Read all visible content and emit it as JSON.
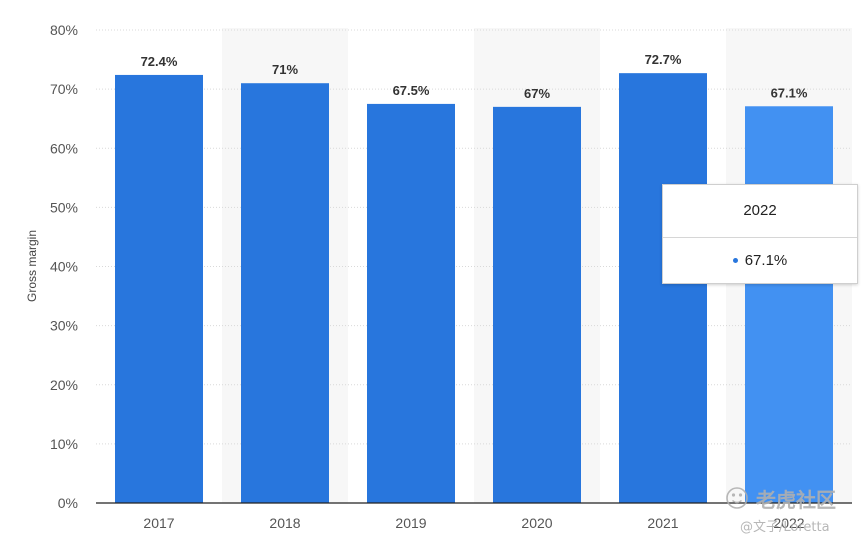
{
  "chart_data": {
    "type": "bar",
    "categories": [
      "2017",
      "2018",
      "2019",
      "2020",
      "2021",
      "2022"
    ],
    "values": [
      72.4,
      71,
      67.5,
      67,
      72.7,
      67.1
    ],
    "value_labels": [
      "72.4%",
      "71%",
      "67.5%",
      "67%",
      "72.7%",
      "67.1%"
    ],
    "ylabel": "Gross margin",
    "ylim": [
      0,
      80
    ],
    "yticks": [
      "0%",
      "10%",
      "20%",
      "30%",
      "40%",
      "50%",
      "60%",
      "70%",
      "80%"
    ],
    "grid": true,
    "highlighted_category": "2022",
    "colors": {
      "bar": "#2876dd",
      "highlight": "#4291f2",
      "band": "#f7f7f7",
      "grid": "#d9d9d9",
      "baseline": "#222222"
    }
  },
  "tooltip": {
    "title": "2022",
    "value": "67.1%"
  },
  "watermark": {
    "main": "老虎社区",
    "sub": "@文子/Loretta"
  }
}
